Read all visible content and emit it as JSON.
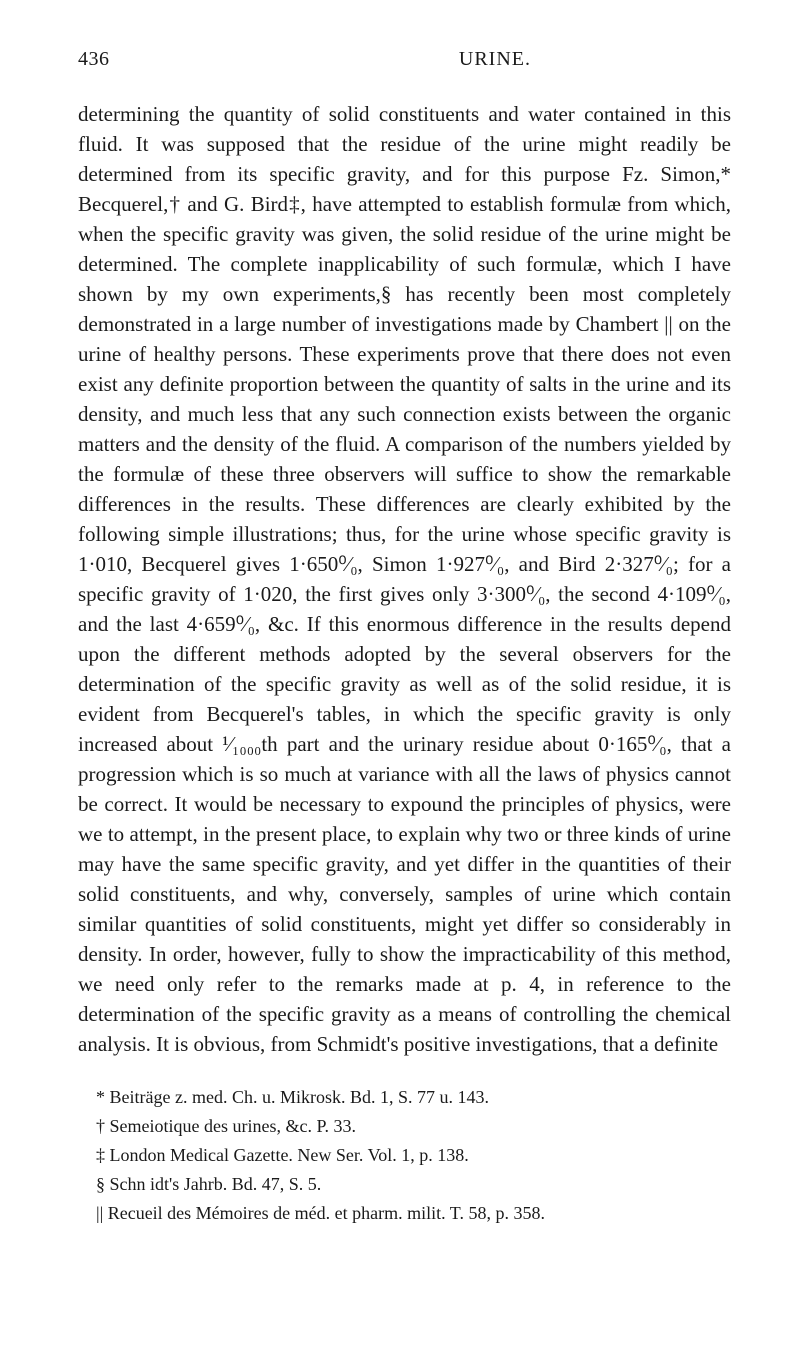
{
  "header": {
    "page_number": "436",
    "title": "URINE."
  },
  "body_text": "determining the quantity of solid constituents and water contained in this fluid. It was supposed that the residue of the urine might readily be determined from its specific gravity, and for this purpose Fz. Simon,* Becquerel,† and G. Bird‡, have attempted to establish formulæ from which, when the specific gravity was given, the solid residue of the urine might be determined. The complete inapplicability of such formulæ, which I have shown by my own experiments,§ has recently been most completely demonstrated in a large number of investigations made by Chambert || on the urine of healthy persons. These experiments prove that there does not even exist any definite proportion between the quantity of salts in the urine and its density, and much less that any such connection exists between the organic matters and the density of the fluid. A comparison of the numbers yielded by the formulæ of these three observers will suffice to show the remarkable differences in the results. These differences are clearly exhibited by the following simple illustrations; thus, for the urine whose specific gravity is 1·010, Becquerel gives 1·650⁰⁄₀, Simon 1·927⁰⁄₀, and Bird 2·327⁰⁄₀; for a specific gravity of 1·020, the first gives only 3·300⁰⁄₀, the second 4·109⁰⁄₀, and the last 4·659⁰⁄₀, &c. If this enormous difference in the results depend upon the different methods adopted by the several observers for the determination of the specific gravity as well as of the solid residue, it is evident from Becquerel's tables, in which the specific gravity is only increased about ¹⁄₁₀₀₀th part and the urinary residue about 0·165⁰⁄₀, that a progression which is so much at variance with all the laws of physics cannot be correct. It would be necessary to expound the principles of physics, were we to attempt, in the present place, to explain why two or three kinds of urine may have the same specific gravity, and yet differ in the quantities of their solid constituents, and why, conversely, samples of urine which contain similar quantities of solid constituents, might yet differ so considerably in density. In order, however, fully to show the impracticability of this method, we need only refer to the remarks made at p. 4, in reference to the determination of the specific gravity as a means of controlling the chemical analysis. It is obvious, from Schmidt's positive investigations, that a definite",
  "footnotes": [
    "* Beiträge z. med. Ch. u. Mikrosk. Bd. 1, S. 77 u. 143.",
    "† Semeiotique des urines, &c. P. 33.",
    "‡ London Medical Gazette. New Ser. Vol. 1, p. 138.",
    "§ Schn idt's Jahrb. Bd. 47, S. 5.",
    "|| Recueil des Mémoires de méd. et pharm. milit. T. 58, p. 358."
  ]
}
